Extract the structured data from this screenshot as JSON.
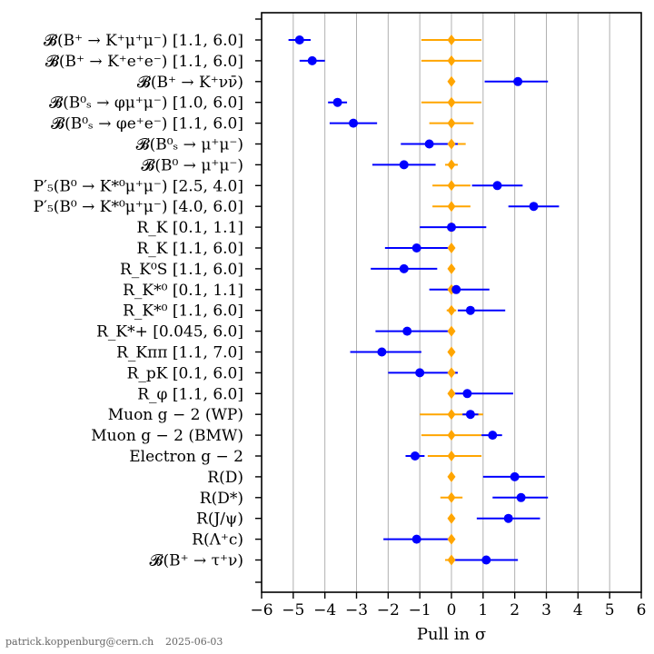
{
  "chart_data": {
    "type": "scatter",
    "xlabel": "Pull in σ",
    "xlim": [
      -6,
      6
    ],
    "x_ticks": [
      "−6",
      "−5",
      "−4",
      "−3",
      "−2",
      "−1",
      "0",
      "1",
      "2",
      "3",
      "4",
      "5",
      "6"
    ],
    "grid": "vertical",
    "colors": {
      "measurement": "#0000ff",
      "reference": "#ffa500"
    },
    "categories": [
      "𝓑(B⁺ → K⁺μ⁺μ⁻) [1.1, 6.0]",
      "𝓑(B⁺ → K⁺e⁺e⁻) [1.1, 6.0]",
      "𝓑(B⁺ → K⁺νν̄)",
      "𝓑(B⁰ₛ → φμ⁺μ⁻) [1.0, 6.0]",
      "𝓑(B⁰ₛ → φe⁺e⁻) [1.1, 6.0]",
      "𝓑(B⁰ₛ → μ⁺μ⁻)",
      "𝓑(B⁰ → μ⁺μ⁻)",
      "P′₅(B⁰ → K*⁰μ⁺μ⁻) [2.5, 4.0]",
      "P′₅(B⁰ → K*⁰μ⁺μ⁻) [4.0, 6.0]",
      "R_K [0.1, 1.1]",
      "R_K [1.1, 6.0]",
      "R_K⁰S [1.1, 6.0]",
      "R_K*⁰ [0.1, 1.1]",
      "R_K*⁰ [1.1, 6.0]",
      "R_K*+ [0.045, 6.0]",
      "R_Kππ [1.1, 7.0]",
      "R_pK [0.1, 6.0]",
      "R_φ [1.1, 6.0]",
      "Muon g − 2 (WP)",
      "Muon g − 2 (BMW)",
      "Electron g − 2",
      "R(D)",
      "R(D*)",
      "R(J/ψ)",
      "R(Λ⁺c)",
      "𝓑(B⁺ → τ⁺ν)"
    ],
    "series": [
      {
        "values": [
          -4.8,
          -4.4,
          2.1,
          -3.6,
          -3.1,
          -0.7,
          -1.5,
          1.45,
          2.6,
          0.0,
          -1.1,
          -1.5,
          0.15,
          0.6,
          -1.4,
          -2.2,
          -1.0,
          0.5,
          0.6,
          1.3,
          -1.15,
          2.0,
          2.2,
          1.8,
          -1.1,
          1.1
        ],
        "err_low": [
          0.35,
          0.4,
          1.05,
          0.3,
          0.75,
          0.9,
          1.0,
          0.8,
          0.8,
          1.0,
          1.0,
          1.05,
          0.85,
          0.4,
          1.0,
          1.0,
          1.0,
          0.55,
          0.25,
          0.35,
          0.3,
          1.0,
          0.9,
          1.0,
          1.05,
          1.05
        ],
        "err_high": [
          0.35,
          0.4,
          0.95,
          0.3,
          0.75,
          0.9,
          1.0,
          0.8,
          0.8,
          1.1,
          1.1,
          1.05,
          1.05,
          1.1,
          1.4,
          1.25,
          1.2,
          1.45,
          0.25,
          0.3,
          0.3,
          0.95,
          0.85,
          1.0,
          1.05,
          1.0
        ]
      },
      {
        "values": [
          0,
          0,
          0,
          0,
          0,
          0,
          0,
          0,
          0,
          0,
          0,
          0,
          0,
          0,
          0,
          0,
          0,
          0,
          0,
          0,
          0,
          0,
          0,
          0,
          0,
          0
        ],
        "err_low": [
          0.95,
          0.95,
          0,
          0.95,
          0.7,
          0.45,
          0.2,
          0.6,
          0.6,
          0.05,
          0.05,
          0.05,
          0.15,
          0.15,
          0.1,
          0.05,
          0.05,
          0.05,
          1.0,
          0.95,
          0.75,
          0.05,
          0.35,
          0.05,
          0.05,
          0.2
        ],
        "err_high": [
          0.95,
          0.95,
          0,
          0.95,
          0.7,
          0.45,
          0.2,
          0.6,
          0.6,
          0.05,
          0.05,
          0.05,
          0.15,
          0.15,
          0.1,
          0.05,
          0.15,
          0.05,
          1.0,
          0.95,
          0.95,
          0.05,
          0.35,
          0.05,
          0.05,
          0.2
        ]
      }
    ]
  },
  "footer": {
    "author": "patrick.koppenburg@cern.ch",
    "date": "2025-06-03"
  }
}
